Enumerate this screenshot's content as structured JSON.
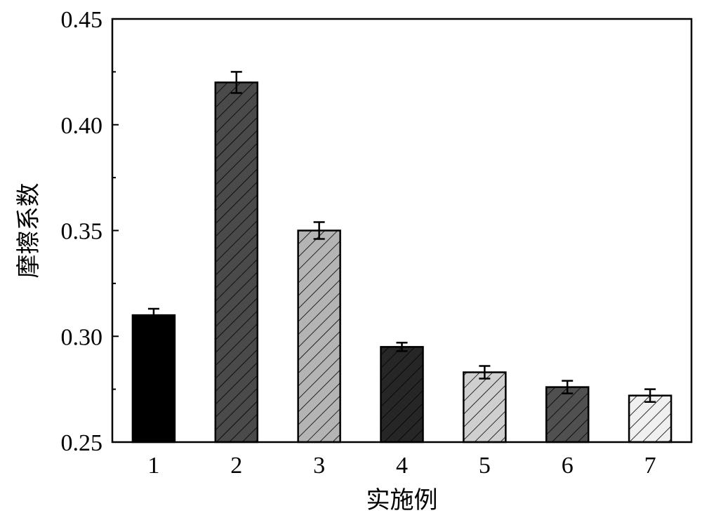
{
  "chart_data": {
    "type": "bar",
    "title": "",
    "xlabel": "实施例",
    "ylabel": "摩擦系数",
    "categories": [
      "1",
      "2",
      "3",
      "4",
      "5",
      "6",
      "7"
    ],
    "values": [
      0.31,
      0.42,
      0.35,
      0.295,
      0.283,
      0.276,
      0.272
    ],
    "errors": [
      0.003,
      0.005,
      0.004,
      0.002,
      0.003,
      0.003,
      0.003
    ],
    "ylim": [
      0.25,
      0.45
    ],
    "yticks": [
      "0.25",
      "0.30",
      "0.35",
      "0.40",
      "0.45"
    ],
    "grid": false,
    "bar_fills": [
      {
        "color": "#000000",
        "hatch": false
      },
      {
        "color": "#4a4a4a",
        "hatch": true
      },
      {
        "color": "#b4b4b4",
        "hatch": true
      },
      {
        "color": "#262626",
        "hatch": true
      },
      {
        "color": "#cfcfcf",
        "hatch": true
      },
      {
        "color": "#505050",
        "hatch": true
      },
      {
        "color": "#f0f0f0",
        "hatch": true
      }
    ]
  }
}
